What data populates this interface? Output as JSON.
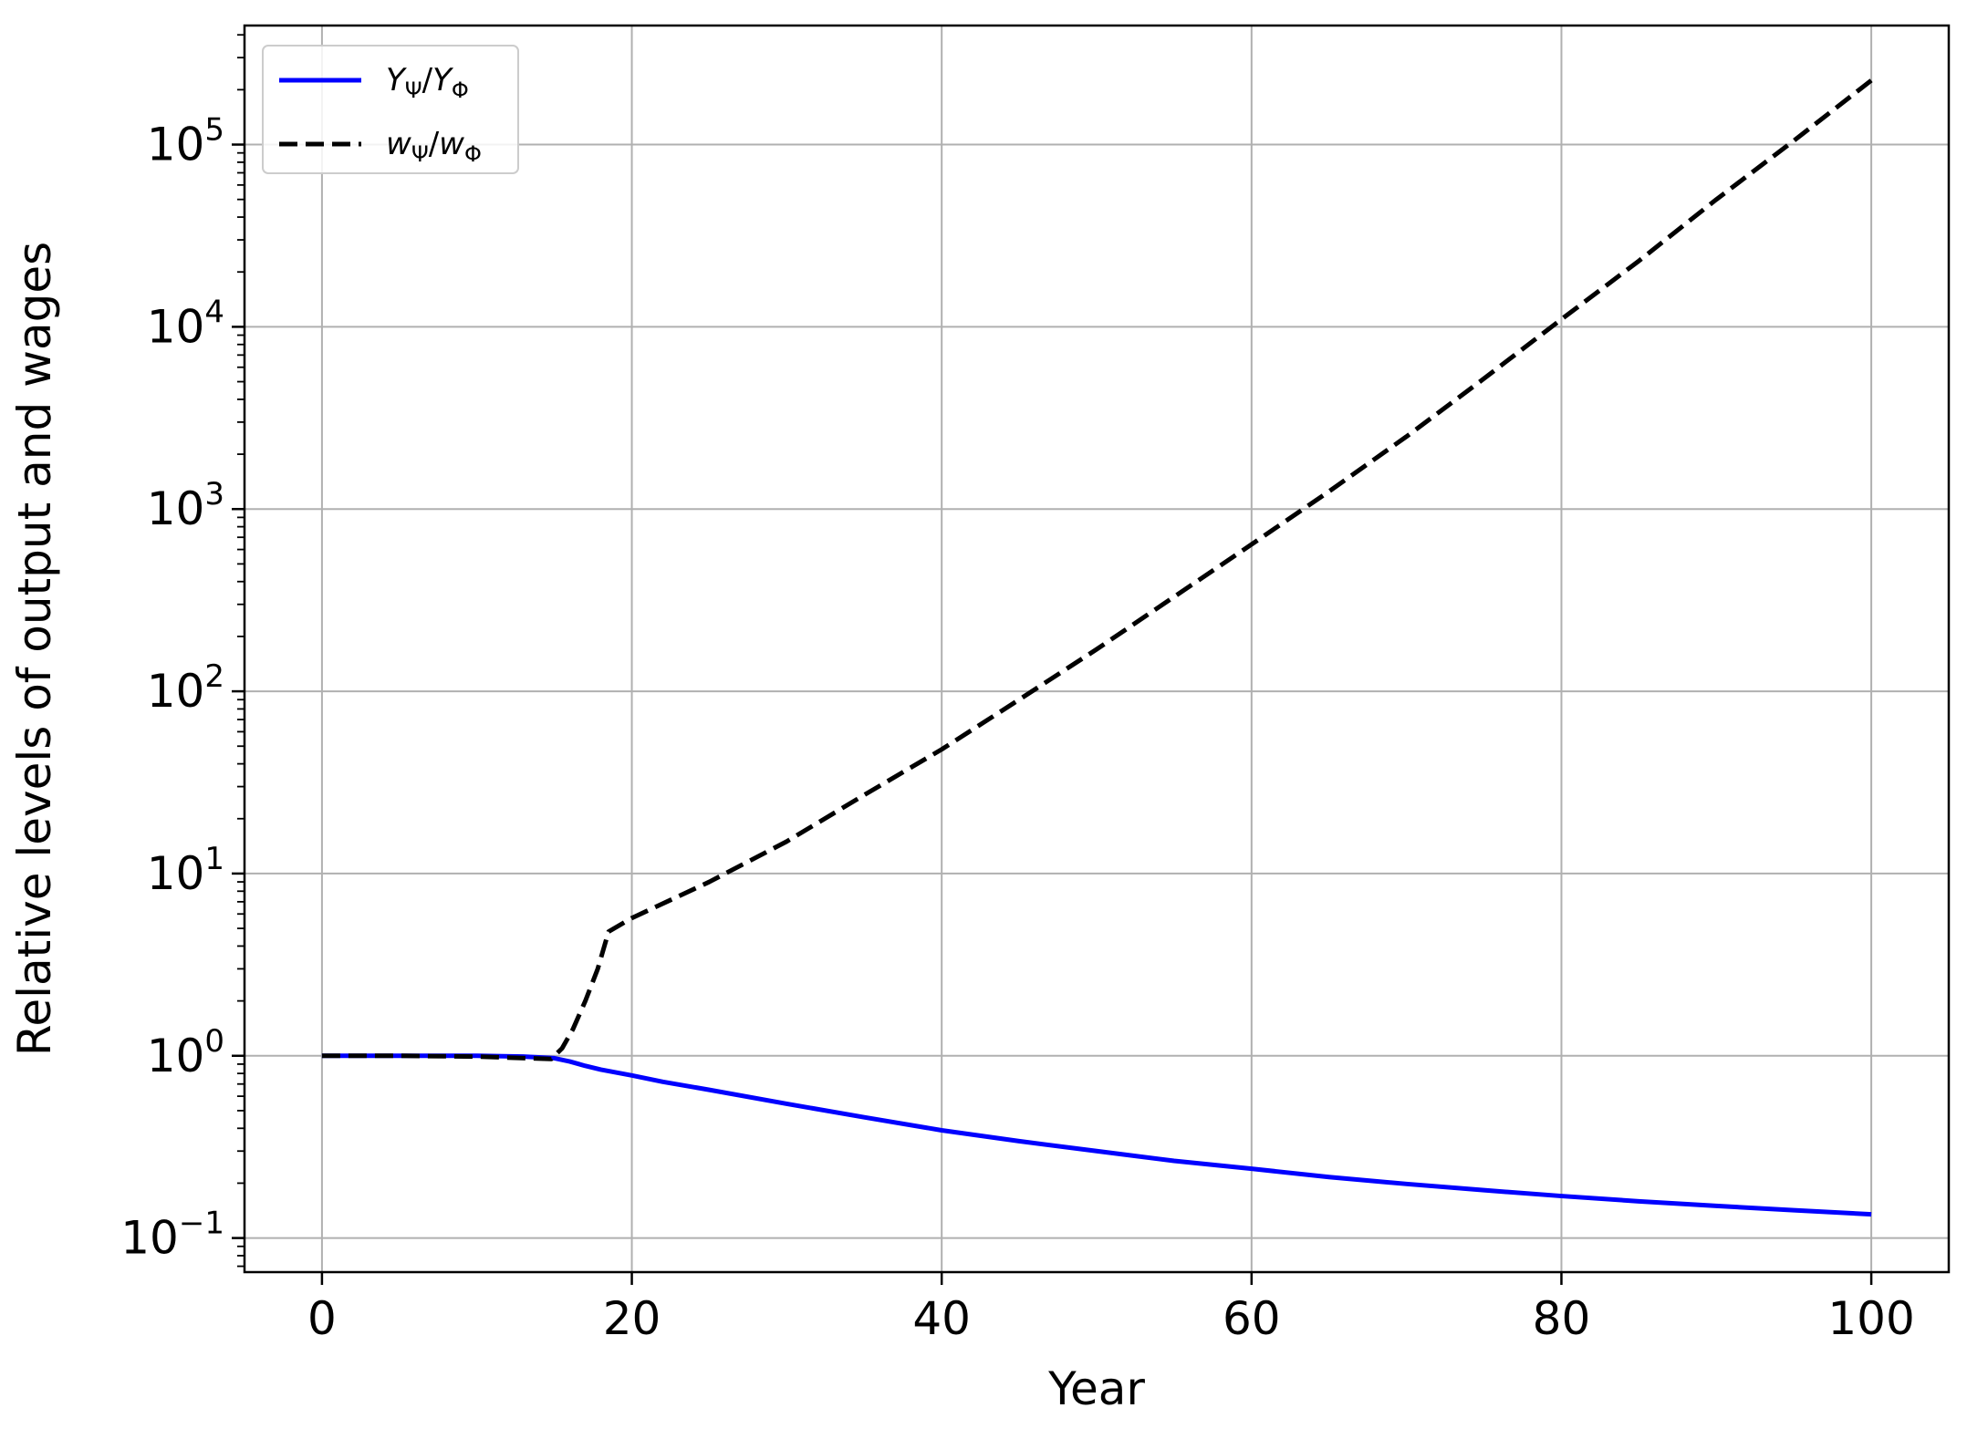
{
  "chart_data": {
    "type": "line",
    "title": "",
    "xlabel": "Year",
    "ylabel": "Relative levels of output and wages",
    "xlim": [
      -5,
      105
    ],
    "ylim": [
      0.065,
      450000
    ],
    "yscale": "log",
    "grid": true,
    "legend_position": "top-left",
    "x_ticks": [
      0,
      20,
      40,
      60,
      80,
      100
    ],
    "x_tick_labels": [
      "0",
      "20",
      "40",
      "60",
      "80",
      "100"
    ],
    "y_ticks": [
      0.1,
      1,
      10,
      100,
      1000,
      10000,
      100000
    ],
    "y_tick_labels": [
      {
        "base": "10",
        "exp": "−1"
      },
      {
        "base": "10",
        "exp": "0"
      },
      {
        "base": "10",
        "exp": "1"
      },
      {
        "base": "10",
        "exp": "2"
      },
      {
        "base": "10",
        "exp": "3"
      },
      {
        "base": "10",
        "exp": "4"
      },
      {
        "base": "10",
        "exp": "5"
      }
    ],
    "series": [
      {
        "name": "Y_Ψ/Y_Φ",
        "legend_main": [
          "Y",
          "Y"
        ],
        "legend_sub": [
          "Ψ",
          "Φ"
        ],
        "color": "#0000ff",
        "style": "solid",
        "x": [
          0,
          5,
          10,
          13,
          15,
          16,
          17,
          18,
          20,
          22,
          25,
          30,
          35,
          40,
          45,
          50,
          55,
          60,
          65,
          70,
          75,
          80,
          85,
          90,
          95,
          100
        ],
        "y": [
          1.0,
          1.0,
          1.0,
          0.99,
          0.97,
          0.93,
          0.88,
          0.84,
          0.78,
          0.72,
          0.65,
          0.545,
          0.46,
          0.39,
          0.34,
          0.3,
          0.265,
          0.24,
          0.216,
          0.198,
          0.183,
          0.17,
          0.159,
          0.15,
          0.142,
          0.135
        ]
      },
      {
        "name": "w_Ψ/w_Φ",
        "legend_main": [
          "w",
          "w"
        ],
        "legend_sub": [
          "Ψ",
          "Φ"
        ],
        "color": "#000000",
        "style": "dashed",
        "x": [
          0,
          5,
          10,
          14.8,
          15.5,
          16.2,
          17,
          17.8,
          18.5,
          20,
          25,
          30,
          35,
          40,
          45,
          50,
          55,
          60,
          65,
          70,
          75,
          80,
          85,
          90,
          95,
          100
        ],
        "y": [
          1.0,
          1.0,
          0.99,
          0.96,
          1.1,
          1.4,
          2.0,
          3.0,
          4.8,
          5.7,
          9.0,
          15.0,
          27.0,
          48.0,
          90.0,
          170.0,
          330.0,
          640.0,
          1250.0,
          2500.0,
          5200.0,
          11000.0,
          23000.0,
          50000.0,
          105000.0,
          225000.0
        ]
      }
    ]
  }
}
